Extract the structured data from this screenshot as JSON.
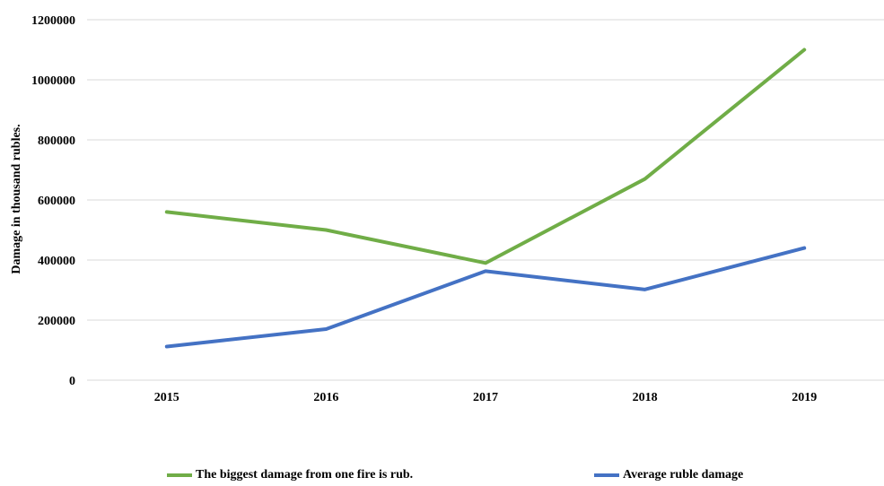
{
  "chart_data": {
    "type": "line",
    "title": "",
    "xlabel": "",
    "ylabel": "Damage in thousand rubles.",
    "categories": [
      "2015",
      "2016",
      "2017",
      "2018",
      "2019"
    ],
    "ylim": [
      0,
      1200000
    ],
    "yticks": [
      "0",
      "200000",
      "400000",
      "600000",
      "800000",
      "1000000",
      "1200000"
    ],
    "grid": true,
    "legend_position": "bottom",
    "series": [
      {
        "name": "The biggest damage from one fire is rub.",
        "color": "#70ad47",
        "values": [
          560000,
          500000,
          390000,
          670000,
          1100000
        ]
      },
      {
        "name": "Average ruble damage",
        "color": "#4472c4",
        "values": [
          112000,
          170000,
          363000,
          302000,
          440000
        ]
      }
    ]
  }
}
